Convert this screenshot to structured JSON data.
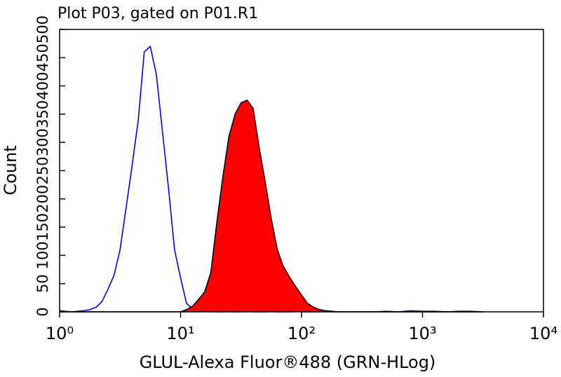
{
  "chart_data": {
    "type": "area",
    "title": "Plot P03, gated on P01.R1",
    "xlabel": "GLUL-Alexa Fluor®488 (GRN-HLog)",
    "ylabel": "Count",
    "xscale": "log",
    "xlim": [
      1,
      10000
    ],
    "xticks": [
      {
        "value": 1,
        "label": "10⁰"
      },
      {
        "value": 10,
        "label": "10¹"
      },
      {
        "value": 100,
        "label": "10²"
      },
      {
        "value": 1000,
        "label": "10³"
      },
      {
        "value": 10000,
        "label": "10⁴"
      }
    ],
    "ylim": [
      0,
      500
    ],
    "yticks": [
      0,
      50,
      100,
      150,
      200,
      250,
      300,
      350,
      400,
      450,
      500
    ],
    "x": [
      1,
      1.12,
      1.26,
      1.41,
      1.58,
      1.78,
      2,
      2.24,
      2.51,
      2.82,
      3.16,
      3.55,
      3.98,
      4.47,
      5.01,
      5.62,
      6.31,
      7.08,
      7.94,
      8.91,
      10,
      11.2,
      12.6,
      14.1,
      15.8,
      17.8,
      20,
      22.4,
      25.1,
      28.2,
      31.6,
      35.5,
      39.8,
      44.7,
      50.1,
      56.2,
      63.1,
      70.8,
      79.4,
      89.1,
      100,
      112,
      126,
      141,
      158,
      178,
      200,
      251,
      316,
      398,
      501,
      631,
      794,
      1000,
      1259,
      1585,
      1995,
      2512,
      3162
    ],
    "series": [
      {
        "color": "#0000ff",
        "filled": false,
        "values": [
          2,
          1,
          0,
          1,
          2,
          4,
          8,
          18,
          40,
          65,
          110,
          185,
          260,
          340,
          460,
          470,
          420,
          320,
          220,
          110,
          60,
          15,
          5,
          2,
          1,
          1,
          0,
          0,
          1,
          0,
          0,
          1,
          0,
          0,
          0,
          1,
          0,
          0,
          0,
          1,
          0,
          0,
          0,
          0,
          1,
          0,
          0,
          0,
          0,
          0,
          1,
          0,
          2,
          1,
          1,
          0,
          1,
          1,
          0
        ]
      },
      {
        "color": "#ff0000",
        "edge_color": "#000000",
        "filled": true,
        "values": [
          0,
          0,
          0,
          0,
          0,
          0,
          0,
          0,
          0,
          0,
          0,
          0,
          0,
          0,
          0,
          0,
          0,
          0,
          0,
          0,
          0,
          4,
          10,
          22,
          35,
          70,
          160,
          240,
          310,
          350,
          370,
          375,
          360,
          290,
          230,
          165,
          110,
          80,
          62,
          45,
          30,
          15,
          8,
          4,
          2,
          1,
          0,
          0,
          0,
          0,
          0,
          0,
          0,
          0,
          0,
          0,
          0,
          0,
          0
        ]
      }
    ]
  }
}
